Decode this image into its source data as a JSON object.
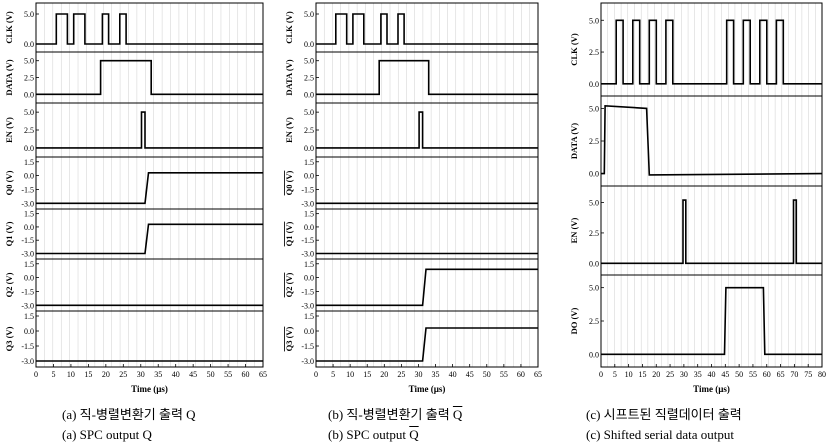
{
  "chart_data": [
    {
      "type": "line",
      "xlabel": "Time (µs)",
      "x_ticks": [
        0,
        5,
        10,
        15,
        20,
        25,
        30,
        35,
        40,
        45,
        50,
        55,
        60,
        65
      ],
      "xlim": [
        0,
        65
      ],
      "caption_korean": "(a)  직-병렬변환기 출력 Q",
      "caption_english": "(a)  SPC output Q",
      "panels": [
        {
          "ylabel": "CLK (V)",
          "y_ticks": [
            "0.0",
            "5.0"
          ],
          "ylim": [
            -1,
            6.5
          ],
          "x": [
            0,
            5.8,
            5.8,
            9.0,
            9.0,
            10.8,
            10.8,
            14.0,
            14.0,
            15.8,
            15.8,
            19.0,
            19.0,
            20.8,
            20.8,
            24.0,
            24.0,
            25.8,
            25.8,
            29.0,
            29.0,
            65
          ],
          "y": [
            0,
            0,
            5,
            5,
            0,
            0,
            5,
            5,
            0,
            0,
            0,
            0,
            5,
            5,
            0,
            0,
            5,
            5,
            0,
            0,
            0,
            0
          ]
        },
        {
          "ylabel": "DATA (V)",
          "y_ticks": [
            "0.0",
            "2.5",
            "5.0"
          ],
          "ylim": [
            -1,
            6
          ],
          "x": [
            0,
            18.5,
            18.5,
            33,
            33,
            65
          ],
          "y": [
            0,
            0,
            5,
            5,
            0,
            0
          ]
        },
        {
          "ylabel": "EN (V)",
          "y_ticks": [
            "0.0",
            "2.5",
            "5.0"
          ],
          "ylim": [
            -1,
            6
          ],
          "x": [
            0,
            30.2,
            30.2,
            31.2,
            31.2,
            65
          ],
          "y": [
            0,
            0,
            5,
            5,
            0,
            0
          ]
        },
        {
          "ylabel": "Q0 (V)",
          "y_ticks": [
            "-3.0",
            "-1.5",
            "0.0",
            "1.5"
          ],
          "ylim": [
            -3.4,
            1.8
          ],
          "x": [
            0,
            31.2,
            32.2,
            65
          ],
          "y": [
            -3.0,
            -3.0,
            0.3,
            0.3
          ]
        },
        {
          "ylabel": "Q1 (V)",
          "y_ticks": [
            "-3.0",
            "-1.5",
            "0.0",
            "1.5"
          ],
          "ylim": [
            -3.4,
            1.8
          ],
          "x": [
            0,
            31.2,
            32.2,
            65
          ],
          "y": [
            -3.0,
            -3.0,
            0.3,
            0.3
          ]
        },
        {
          "ylabel": "Q2 (V)",
          "y_ticks": [
            "-3.0",
            "-1.5",
            "0.0",
            "1.5"
          ],
          "ylim": [
            -3.4,
            1.8
          ],
          "x": [
            0,
            65
          ],
          "y": [
            -3.0,
            -3.0
          ]
        },
        {
          "ylabel": "Q3 (V)",
          "y_ticks": [
            "-3.0",
            "-1.5",
            "0.0",
            "1.5"
          ],
          "ylim": [
            -3.4,
            1.8
          ],
          "x": [
            0,
            65
          ],
          "y": [
            -3.0,
            -3.0
          ]
        }
      ]
    },
    {
      "type": "line",
      "xlabel": "Time (µs)",
      "x_ticks": [
        0,
        5,
        10,
        15,
        20,
        25,
        30,
        35,
        40,
        45,
        50,
        55,
        60,
        65
      ],
      "xlim": [
        0,
        65
      ],
      "caption_korean": "(b)  직-병렬변환기 출력 Q",
      "caption_english": "(b)  SPC output Q",
      "panels": [
        {
          "ylabel": "CLK (V)",
          "y_ticks": [
            "0.0",
            "5.0"
          ],
          "ylim": [
            -1,
            6.5
          ],
          "x": [
            0,
            5.8,
            5.8,
            9.0,
            9.0,
            10.8,
            10.8,
            14.0,
            14.0,
            15.8,
            15.8,
            19.0,
            19.0,
            20.8,
            20.8,
            24.0,
            24.0,
            25.8,
            25.8,
            29.0,
            29.0,
            65
          ],
          "y": [
            0,
            0,
            5,
            5,
            0,
            0,
            5,
            5,
            0,
            0,
            0,
            0,
            5,
            5,
            0,
            0,
            5,
            5,
            0,
            0,
            0,
            0
          ]
        },
        {
          "ylabel": "DATA (V)",
          "y_ticks": [
            "0.0",
            "2.5",
            "5.0"
          ],
          "ylim": [
            -1,
            6
          ],
          "x": [
            0,
            18.5,
            18.5,
            33,
            33,
            65
          ],
          "y": [
            0,
            0,
            5,
            5,
            0,
            0
          ]
        },
        {
          "ylabel": "EN (V)",
          "y_ticks": [
            "0.0",
            "2.5",
            "5.0"
          ],
          "ylim": [
            -1,
            6
          ],
          "x": [
            0,
            30.2,
            30.2,
            31.2,
            31.2,
            65
          ],
          "y": [
            0,
            0,
            5,
            5,
            0,
            0
          ]
        },
        {
          "ylabel": "Q0 (V)",
          "overline": true,
          "y_ticks": [
            "-3.0",
            "-1.5",
            "0.0",
            "1.5"
          ],
          "ylim": [
            -3.4,
            1.8
          ],
          "x": [
            0,
            65
          ],
          "y": [
            -3.0,
            -3.0
          ]
        },
        {
          "ylabel": "Q1 (V)",
          "overline": true,
          "y_ticks": [
            "-3.0",
            "-1.5",
            "0.0",
            "1.5"
          ],
          "ylim": [
            -3.4,
            1.8
          ],
          "x": [
            0,
            65
          ],
          "y": [
            -3.0,
            -3.0
          ]
        },
        {
          "ylabel": "Q2 (V)",
          "overline": true,
          "y_ticks": [
            "-3.0",
            "-1.5",
            "0.0",
            "1.5"
          ],
          "ylim": [
            -3.4,
            1.8
          ],
          "x": [
            0,
            31.2,
            32.2,
            65
          ],
          "y": [
            -3.0,
            -3.0,
            0.9,
            0.9
          ]
        },
        {
          "ylabel": "Q3 (V)",
          "overline": true,
          "y_ticks": [
            "-3.0",
            "-1.5",
            "0.0",
            "1.5"
          ],
          "ylim": [
            -3.4,
            1.8
          ],
          "x": [
            0,
            31.2,
            32.2,
            65
          ],
          "y": [
            -3.0,
            -3.0,
            0.3,
            0.3
          ]
        }
      ]
    },
    {
      "type": "line",
      "xlabel": "Time (µs)",
      "x_ticks": [
        0,
        5,
        10,
        15,
        20,
        25,
        30,
        35,
        40,
        45,
        50,
        55,
        60,
        65,
        70,
        75,
        80
      ],
      "xlim": [
        0,
        80
      ],
      "caption_korean": "(c)  시프트된 직렬데이터 출력",
      "caption_english": "(c)  Shifted serial data output",
      "panels": [
        {
          "ylabel": "CLK (V)",
          "y_ticks": [
            "0.0",
            "2.5",
            "5.0"
          ],
          "ylim": [
            -0.8,
            6.2
          ],
          "x": [
            0,
            5.5,
            5.5,
            8.0,
            8.0,
            11.5,
            11.5,
            14.0,
            14.0,
            17.5,
            17.5,
            20.0,
            20.0,
            23.5,
            23.5,
            26.0,
            26.0,
            45.5,
            45.5,
            48.0,
            48.0,
            51.5,
            51.5,
            54.0,
            54.0,
            57.5,
            57.5,
            60.0,
            60.0,
            63.5,
            63.5,
            66.0,
            66.0,
            80
          ],
          "y": [
            0,
            0,
            5,
            5,
            0,
            0,
            5,
            5,
            0,
            0,
            5,
            5,
            0,
            0,
            5,
            5,
            0,
            0,
            5,
            5,
            0,
            0,
            5,
            5,
            0,
            0,
            5,
            5,
            0,
            0,
            5,
            5,
            0,
            0
          ]
        },
        {
          "ylabel": "DATA (V)",
          "y_ticks": [
            "0.0",
            "2.5",
            "5.0"
          ],
          "ylim": [
            -0.8,
            5.8
          ],
          "x": [
            0,
            1.2,
            1.5,
            16.5,
            17.5,
            80
          ],
          "y": [
            0,
            0,
            5.2,
            5.0,
            -0.1,
            0
          ]
        },
        {
          "ylabel": "EN (V)",
          "y_ticks": [
            "0.0",
            "2.5",
            "5.0"
          ],
          "ylim": [
            -0.8,
            6.2
          ],
          "x": [
            0,
            29.7,
            29.7,
            30.7,
            30.7,
            69.7,
            69.7,
            70.7,
            70.7,
            80
          ],
          "y": [
            0,
            0,
            5.2,
            5.2,
            0,
            0,
            5.2,
            5.2,
            0,
            0
          ]
        },
        {
          "ylabel": "DO (V)",
          "y_ticks": [
            "0.0",
            "2.5",
            "5.0"
          ],
          "ylim": [
            -0.8,
            5.8
          ],
          "x": [
            0,
            44.7,
            45.2,
            58.8,
            59.3,
            80
          ],
          "y": [
            0,
            0,
            5.0,
            5.0,
            0,
            0
          ]
        }
      ]
    }
  ]
}
